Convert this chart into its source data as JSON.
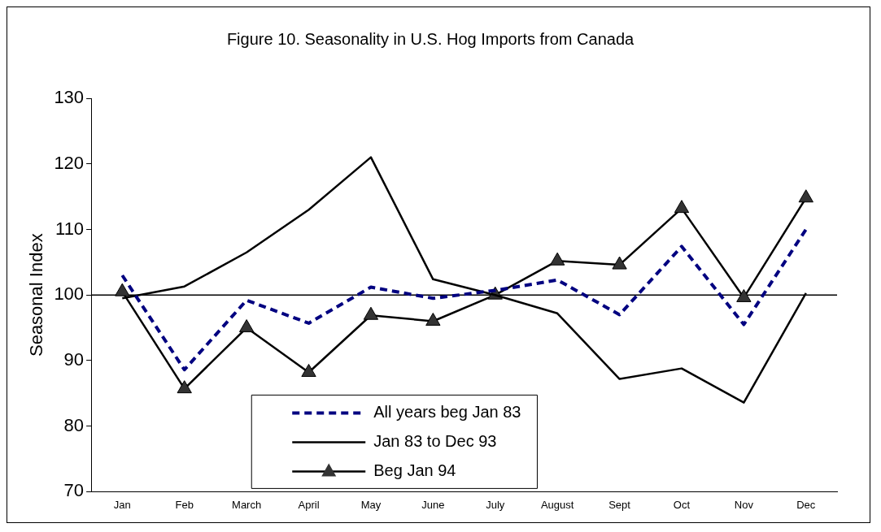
{
  "chart_data": {
    "type": "line",
    "title": "Figure 10. Seasonality in U.S. Hog Imports from Canada",
    "ylabel": "Seasonal Index",
    "categories": [
      "Jan",
      "Feb",
      "March",
      "April",
      "May",
      "June",
      "July",
      "August",
      "Sept",
      "Oct",
      "Nov",
      "Dec"
    ],
    "series": [
      {
        "name": "All years beg Jan 83",
        "color": "#000080",
        "line_style": "dashed",
        "marker": "none",
        "values": [
          103,
          88.6,
          99.2,
          95.7,
          101.2,
          99.5,
          100.7,
          102.3,
          97,
          107.4,
          95.5,
          110
        ]
      },
      {
        "name": "Jan 83 to Dec 93",
        "color": "#000000",
        "line_style": "solid",
        "marker": "none",
        "values": [
          99.5,
          101.3,
          106.5,
          113,
          121,
          102.4,
          100,
          97.2,
          87.2,
          88.8,
          83.6,
          100.3
        ]
      },
      {
        "name": "Beg Jan 94",
        "color": "#000000",
        "line_style": "solid",
        "marker": "triangle",
        "values": [
          100.5,
          85.7,
          95,
          88.2,
          96.9,
          96,
          100,
          105.2,
          104.6,
          113.2,
          99.6,
          114.8
        ]
      }
    ],
    "ylim": [
      70,
      130
    ],
    "yticks": [
      70,
      80,
      90,
      100,
      110,
      120,
      130
    ],
    "ref_lines": [
      {
        "axis": "y",
        "value": 100,
        "color": "#000000"
      }
    ],
    "grid": false,
    "legend": "bottom"
  }
}
